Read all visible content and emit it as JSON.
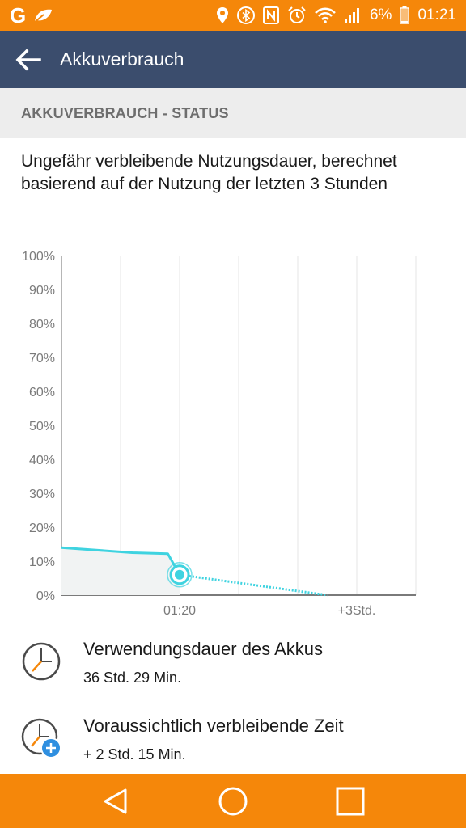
{
  "status_bar": {
    "battery_text": "6%",
    "clock": "01:21",
    "accent_color": "#f5870a"
  },
  "app_bar": {
    "title": "Akkuverbrauch",
    "back_icon": "arrow-left-icon",
    "color": "#3b4d6d"
  },
  "section": {
    "header": "AKKUVERBRAUCH - STATUS"
  },
  "description": "Ungefähr verbleibende Nutzungsdauer, berechnet basierend auf der Nutzung der letzten 3 Stunden",
  "chart_data": {
    "type": "line",
    "title": "",
    "xlabel": "",
    "ylabel": "",
    "ylim": [
      0,
      100
    ],
    "yticks": [
      "100%",
      "90%",
      "80%",
      "70%",
      "60%",
      "50%",
      "40%",
      "30%",
      "20%",
      "10%",
      "0%"
    ],
    "xticks": [
      "01:20",
      "+3Std."
    ],
    "grid": true,
    "series": [
      {
        "style": "solid",
        "color": "#3fd3e0",
        "x": [
          0,
          0.6,
          0.9,
          1.0
        ],
        "y": [
          14,
          12.5,
          12.2,
          6
        ]
      },
      {
        "style": "dotted",
        "color": "#3fd3e0",
        "x": [
          1.0,
          2.25
        ],
        "y": [
          6,
          0
        ]
      }
    ],
    "current_point": {
      "x": 1.0,
      "y": 6
    }
  },
  "info": [
    {
      "title": "Verwendungsdauer des Akkus",
      "value": "36 Std. 29 Min.",
      "icon": "clock-icon"
    },
    {
      "title": "Voraussichtlich verbleibende Zeit",
      "value": "+ 2 Std. 15 Min.",
      "icon": "clock-plus-icon"
    }
  ],
  "nav": {
    "back_icon": "nav-back-triangle-icon",
    "home_icon": "nav-home-circle-icon",
    "recents_icon": "nav-recents-square-icon"
  }
}
